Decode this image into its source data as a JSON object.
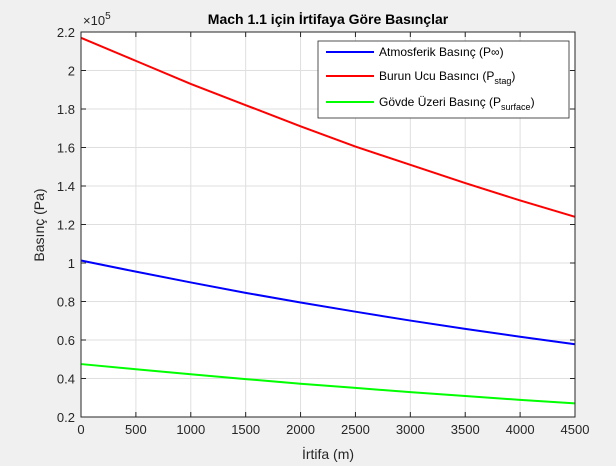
{
  "chart_data": {
    "type": "line",
    "title": "Mach 1.1 için İrtifaya Göre Basınçlar",
    "xlabel": "İrtifa (m)",
    "ylabel": "Basınç (Pa)",
    "y_exponent_label": "×10",
    "y_exponent_power": "5",
    "xlim": [
      0,
      4500
    ],
    "ylim": [
      0.2,
      2.2
    ],
    "y_scale_factor": 100000,
    "xticks": [
      0,
      500,
      1000,
      1500,
      2000,
      2500,
      3000,
      3500,
      4000,
      4500
    ],
    "yticks": [
      0.2,
      0.4,
      0.6,
      0.8,
      1.0,
      1.2,
      1.4,
      1.6,
      1.8,
      2.0,
      2.2
    ],
    "xtick_labels": [
      "0",
      "500",
      "1000",
      "1500",
      "2000",
      "2500",
      "3000",
      "3500",
      "4000",
      "4500"
    ],
    "ytick_labels": [
      "0.2",
      "0.4",
      "0.6",
      "0.8",
      "1",
      "1.2",
      "1.4",
      "1.6",
      "1.8",
      "2",
      "2.2"
    ],
    "grid": true,
    "legend_position": "top-right",
    "x": [
      0,
      500,
      1000,
      1500,
      2000,
      2500,
      3000,
      3500,
      4000,
      4500
    ],
    "series": [
      {
        "name": "Atmosferik Basınç (P∞)",
        "legend_main": "Atmosferik Basınç (P∞)",
        "legend_sub": "",
        "legend_tail": "",
        "color": "#0000ff",
        "values": [
          1.013,
          0.955,
          0.899,
          0.845,
          0.795,
          0.747,
          0.701,
          0.658,
          0.617,
          0.578
        ]
      },
      {
        "name": "Burun Ucu Basıncı (Pstag)",
        "legend_main": "Burun Ucu Basıncı (P",
        "legend_sub": "stag",
        "legend_tail": ")",
        "color": "#ff0000",
        "values": [
          2.17,
          2.05,
          1.93,
          1.82,
          1.71,
          1.605,
          1.51,
          1.415,
          1.325,
          1.24
        ]
      },
      {
        "name": "Gövde Üzeri Basınç (Psurface)",
        "legend_main": "Gövde Üzeri Basınç (P",
        "legend_sub": "surface",
        "legend_tail": ")",
        "color": "#00ff00",
        "values": [
          0.475,
          0.448,
          0.422,
          0.397,
          0.373,
          0.351,
          0.329,
          0.309,
          0.289,
          0.271
        ]
      }
    ]
  }
}
